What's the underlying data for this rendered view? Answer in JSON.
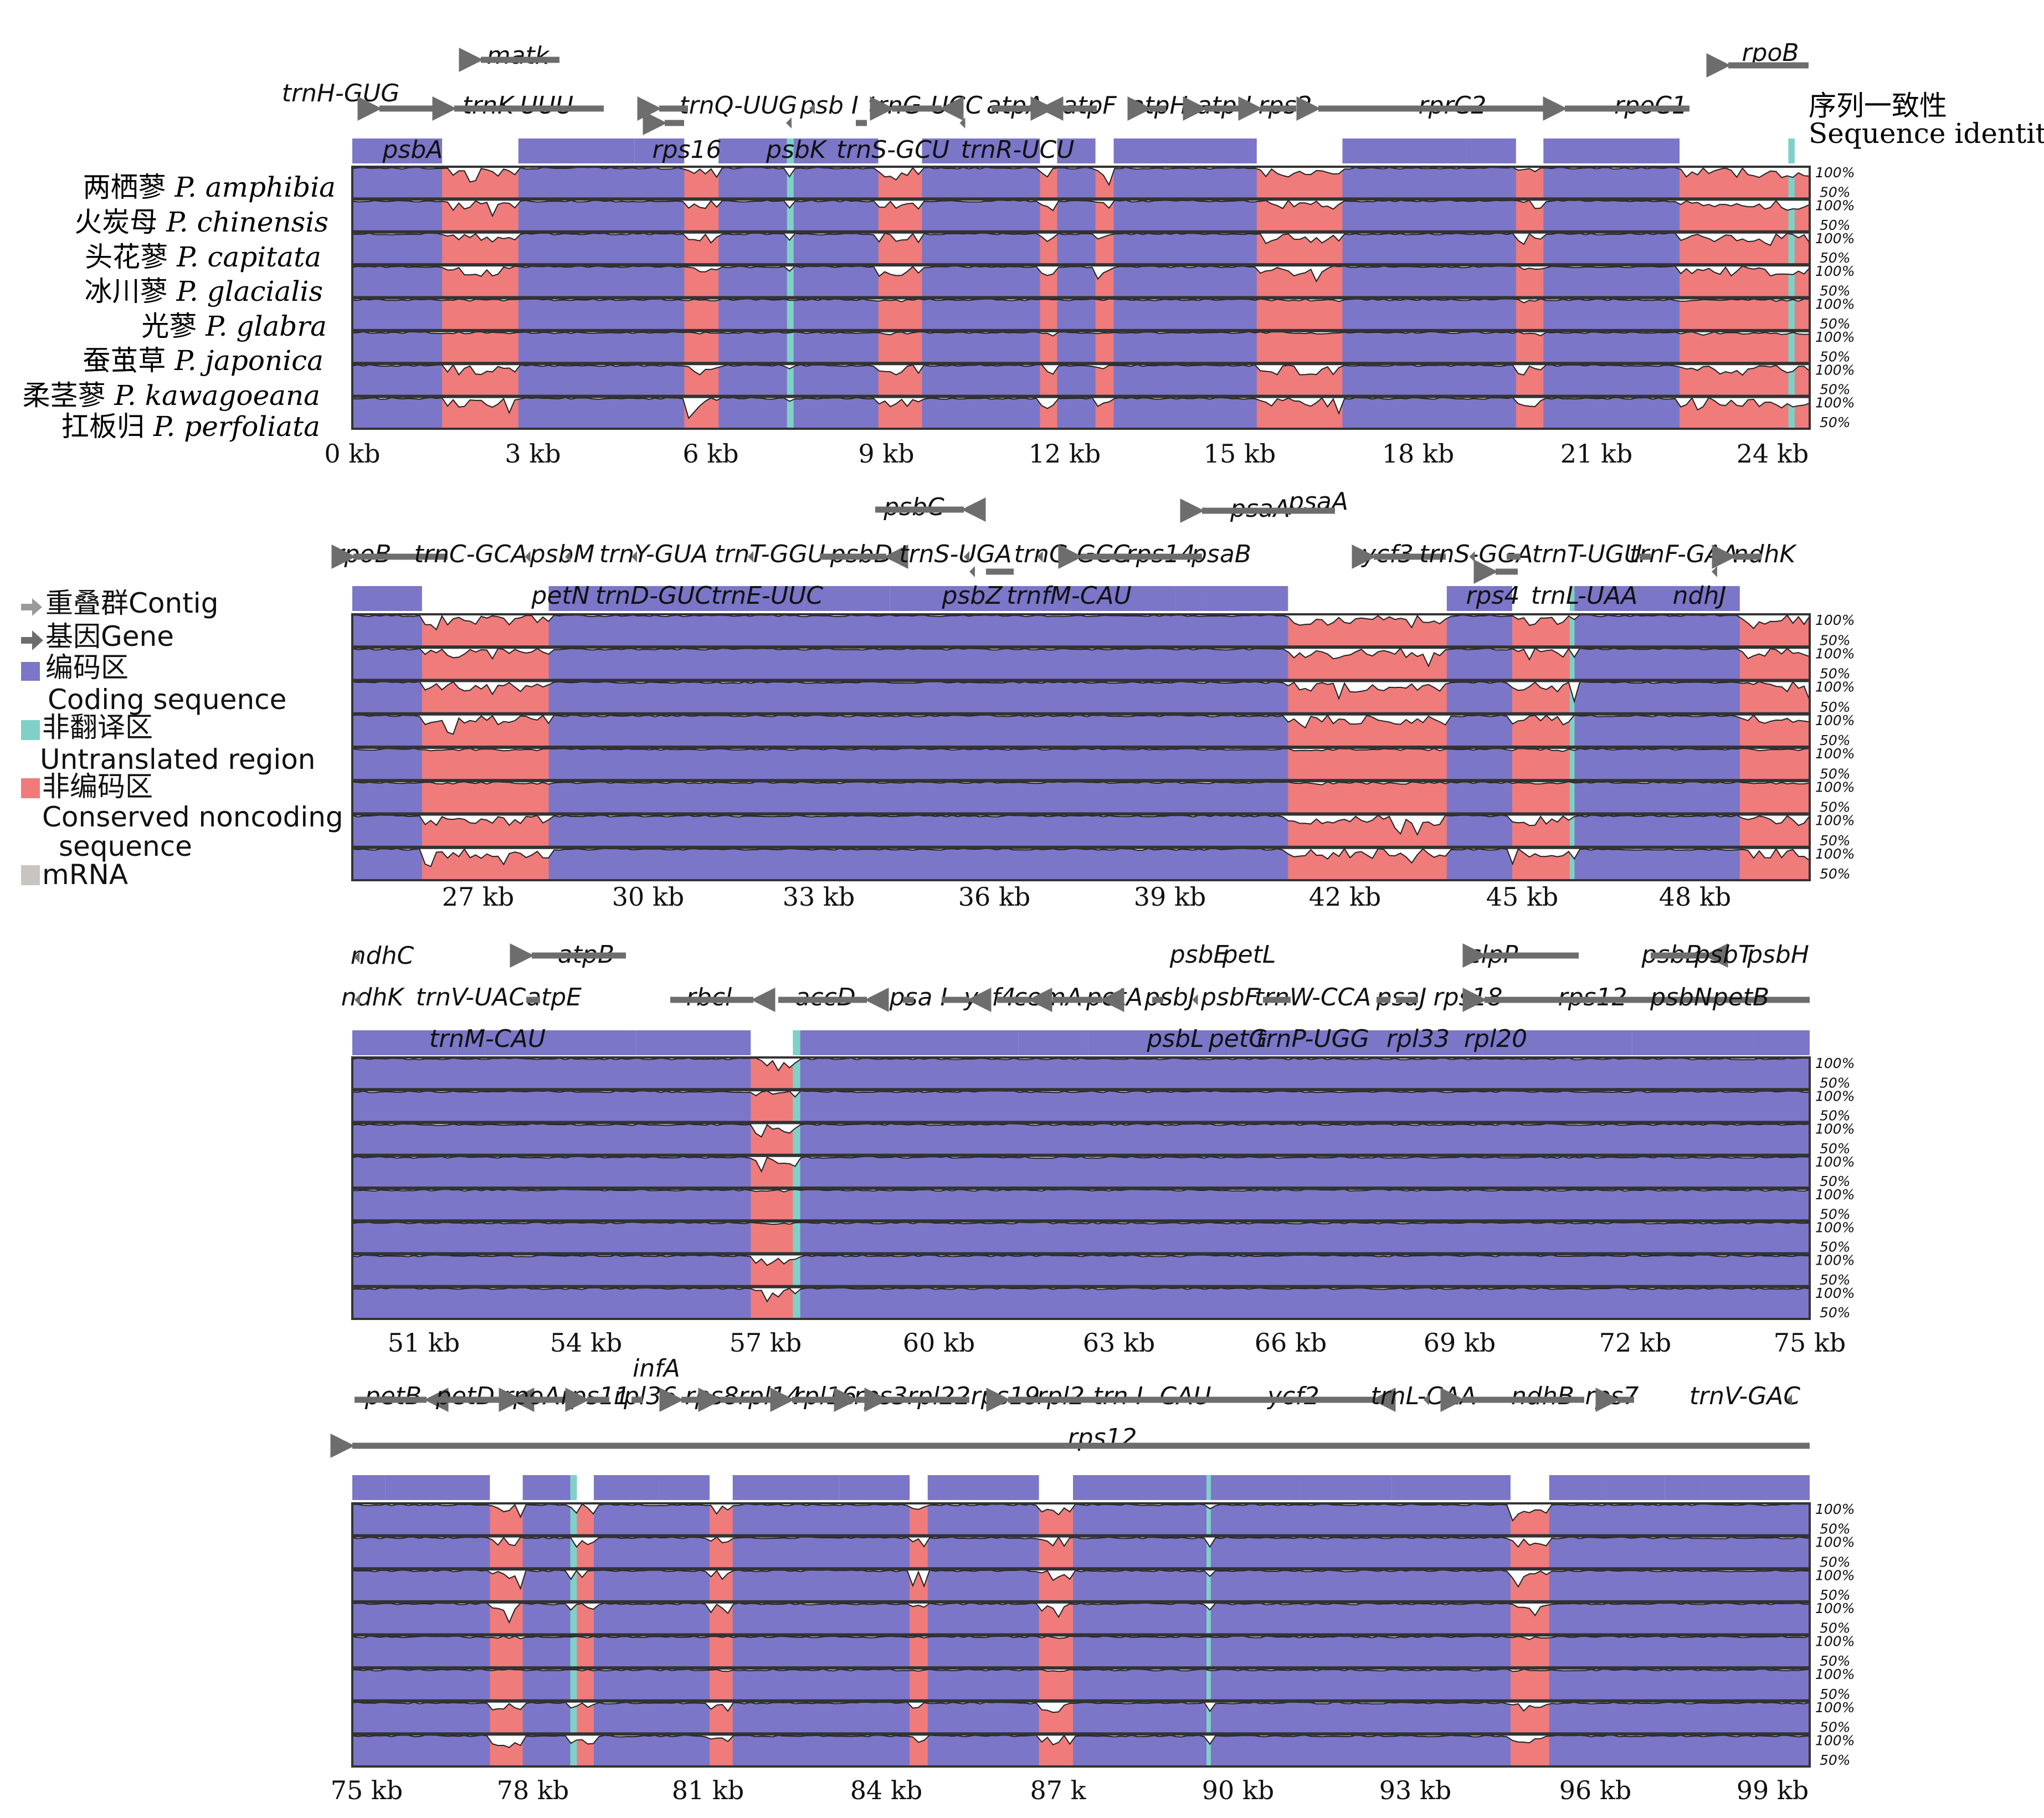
{
  "identity_label": {
    "cn": "序列一致性",
    "en": "Sequence identity"
  },
  "species": [
    {
      "cn": "两栖蓼",
      "latin": "P. amphibia"
    },
    {
      "cn": "火炭母",
      "latin": "P. chinensis"
    },
    {
      "cn": "头花蓼",
      "latin": "P. capitata"
    },
    {
      "cn": "冰川蓼",
      "latin": "P. glacialis"
    },
    {
      "cn": "光蓼",
      "latin": "P. glabra"
    },
    {
      "cn": "蚕茧草",
      "latin": "P. japonica"
    },
    {
      "cn": "柔茎蓼",
      "latin": "P. kawagoeana"
    },
    {
      "cn": "扛板归",
      "latin": "P. perfoliata"
    }
  ],
  "pct_labels": [
    "100%",
    "50%"
  ],
  "legend": [
    {
      "text": "重叠群Contig",
      "marker": "contig-arrow",
      "color": "#9a9a9a"
    },
    {
      "text": "基因Gene",
      "marker": "gene-arrow",
      "color": "#6d6d6d"
    },
    {
      "text": "编码区",
      "subtext": "Coding sequence",
      "marker": "box",
      "color": "#7b76c8"
    },
    {
      "text": "非翻译区",
      "subtext": "Untranslated region",
      "marker": "box",
      "color": "#7fd1c7"
    },
    {
      "text": "非编码区",
      "subtext": "Conserved noncoding sequence",
      "marker": "box",
      "color": "#ef7b7b"
    },
    {
      "text": "mRNA",
      "marker": "box",
      "color": "#c8c4c0"
    }
  ],
  "colors": {
    "coding": "#7b76c8",
    "utr": "#7fd1c7",
    "noncoding": "#ef7b7b",
    "gene_arrow": "#6d6d6d",
    "contig_arrow": "#9a9a9a"
  },
  "panels": [
    {
      "ticks": [
        "0 kb",
        "3 kb",
        "6 kb",
        "9 kb",
        "12 kb",
        "15 kb",
        "18 kb",
        "21 kb",
        "24 kb"
      ],
      "genes_top": [
        "matk",
        "rpoB"
      ],
      "genes_row1": [
        "trnH-GUG",
        "trnK-UUU",
        "trnQ-UUG",
        "psb I",
        "trnG-UCC",
        "atpA",
        "atpF",
        "atpH",
        "atp I",
        "rps2",
        "rprC2",
        "rpoC1"
      ],
      "genes_row2": [
        "psbA",
        "rps16",
        "psbK",
        "trnS-GCU",
        "trnR-UCU"
      ]
    },
    {
      "ticks": [
        "27 kb",
        "30 kb",
        "33 kb",
        "36 kb",
        "39 kb",
        "42 kb",
        "45 kb",
        "48 kb"
      ],
      "genes_top": [
        "psbC",
        "psaA",
        "psaA"
      ],
      "genes_row1": [
        "rpoB",
        "trnC-GCA",
        "psbM",
        "trnY-GUA",
        "trnT-GGU",
        "psbD",
        "trnS-UGA",
        "trnG-GCC",
        "rps14",
        "psaB",
        "ycf3",
        "trnS-GGA",
        "trnT-UGU",
        "trnF-GAA",
        "ndhK"
      ],
      "genes_row2": [
        "petN",
        "trnD-GUC",
        "trnE-UUC",
        "psbZ",
        "trnfM-CAU",
        "rps4",
        "trnL-UAA",
        "ndhJ"
      ]
    },
    {
      "ticks": [
        "51 kb",
        "54 kb",
        "57 kb",
        "60 kb",
        "63 kb",
        "66 kb",
        "69 kb",
        "72 kb",
        "75 kb"
      ],
      "genes_top": [
        "ndhC",
        "atpB",
        "psbE",
        "petL",
        "clpP",
        "psbB",
        "psbT",
        "psbH"
      ],
      "genes_row1": [
        "ndhK",
        "trnV-UAC",
        "atpE",
        "rbcl",
        "accD",
        "psa I",
        "ycf4",
        "cemA",
        "petA",
        "psbJ",
        "psbF",
        "trnW-CCA",
        "psaJ",
        "rps18",
        "rps12",
        "psbN",
        "petB"
      ],
      "genes_row2": [
        "trnM-CAU",
        "psbL",
        "petG",
        "trnP-UGG",
        "rpl33",
        "rpl20"
      ]
    },
    {
      "ticks": [
        "75 kb",
        "78 kb",
        "81 kb",
        "84 kb",
        "87 k",
        "90 kb",
        "93 kb",
        "96 kb",
        "99 kb"
      ],
      "genes_top": [
        "infA"
      ],
      "genes_row1": [
        "petB",
        "petD",
        "rpoA",
        "rps11",
        "rpl36",
        "rps8",
        "rpl14",
        "rpl16",
        "rps3",
        "rpl22",
        "rps19",
        "rpl2",
        "trn I -CAU",
        "ycf2",
        "trnL-CAA",
        "ndhB",
        "rps7",
        "trnV-GAC"
      ],
      "genes_row2": [
        "rps12"
      ]
    }
  ]
}
